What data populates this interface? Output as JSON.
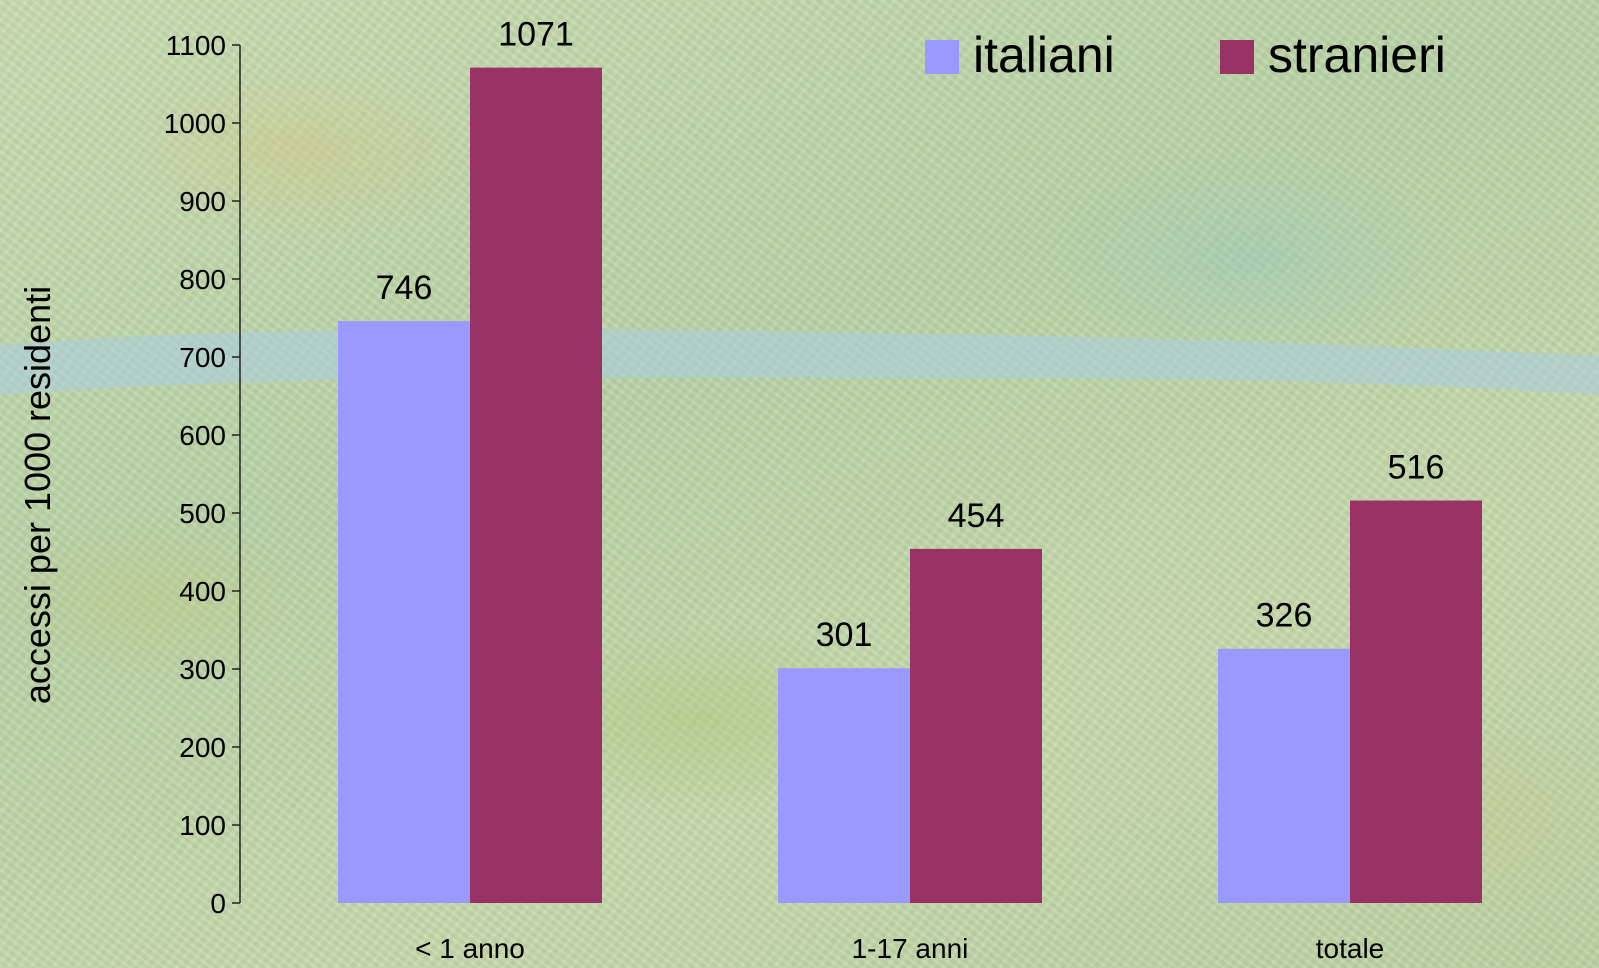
{
  "chart_data": {
    "type": "bar",
    "title": "",
    "xlabel": "",
    "ylabel": "accessi per 1000 residenti",
    "categories": [
      "< 1 anno",
      "1-17 anni",
      "totale"
    ],
    "series": [
      {
        "name": "italiani",
        "values": [
          746,
          301,
          326
        ],
        "color": "#9999ff"
      },
      {
        "name": "stranieri",
        "values": [
          1071,
          454,
          516
        ],
        "color": "#993366"
      }
    ],
    "ylim": [
      0,
      1100
    ],
    "yticks": [
      0,
      100,
      200,
      300,
      400,
      500,
      600,
      700,
      800,
      900,
      1000,
      1100
    ],
    "grid": false,
    "legend_position": "top-right",
    "data_labels": true
  }
}
